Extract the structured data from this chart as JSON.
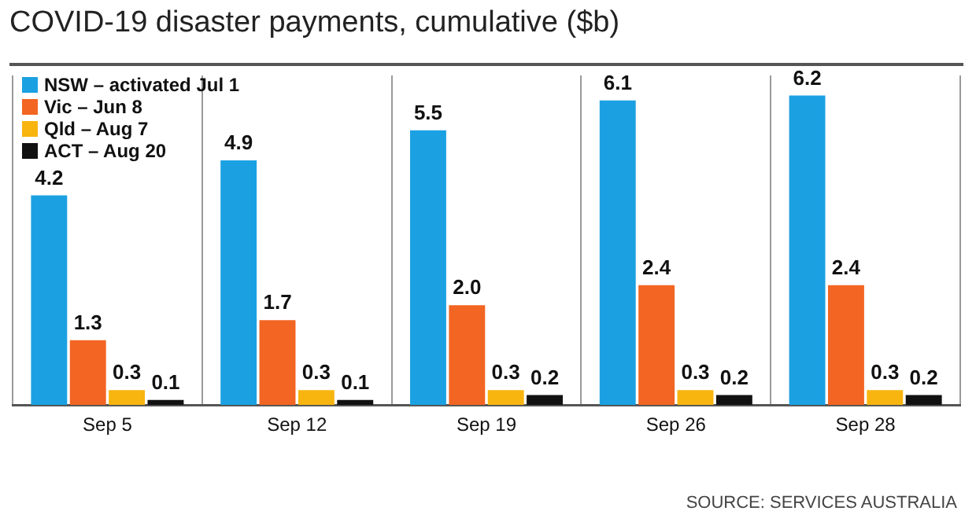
{
  "chart_data": {
    "type": "bar",
    "title": "COVID-19 disaster payments, cumulative ($b)",
    "categories": [
      "Sep 5",
      "Sep 12",
      "Sep 19",
      "Sep 26",
      "Sep 28"
    ],
    "series": [
      {
        "name": "NSW – activated Jul 1",
        "color": "#1ba1e2",
        "values": [
          4.2,
          4.9,
          5.5,
          6.1,
          6.2
        ],
        "value_labels": [
          "4.2",
          "4.9",
          "5.5",
          "6.1",
          "6.2"
        ]
      },
      {
        "name": "Vic – Jun 8",
        "color": "#f26522",
        "values": [
          1.3,
          1.7,
          2.0,
          2.4,
          2.4
        ],
        "value_labels": [
          "1.3",
          "1.7",
          "2.0",
          "2.4",
          "2.4"
        ]
      },
      {
        "name": "Qld – Aug 7",
        "color": "#f8b50f",
        "values": [
          0.3,
          0.3,
          0.3,
          0.3,
          0.3
        ],
        "value_labels": [
          "0.3",
          "0.3",
          "0.3",
          "0.3",
          "0.3"
        ]
      },
      {
        "name": "ACT – Aug 20",
        "color": "#111111",
        "values": [
          0.1,
          0.1,
          0.2,
          0.2,
          0.2
        ],
        "value_labels": [
          "0.1",
          "0.1",
          "0.2",
          "0.2",
          "0.2"
        ]
      }
    ],
    "ylim": [
      0,
      6.6
    ],
    "grid": "x",
    "legend": "top left",
    "tick_labels": "x",
    "annotations": [
      "SOURCE: SERVICES AUSTRALIA"
    ]
  }
}
